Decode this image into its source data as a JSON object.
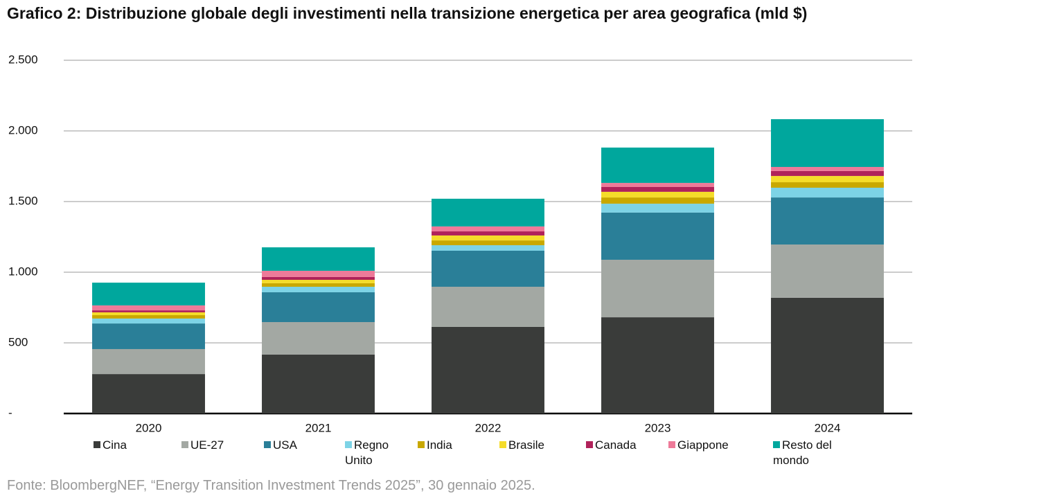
{
  "chart_data": {
    "type": "stacked-bar",
    "title": "Grafico 2: Distribuzione globale degli investimenti nella transizione energetica per area geografica (mld $)",
    "source": "Fonte: BloombergNEF, “Energy Transition Investment Trends 2025”, 30 gennaio 2025.",
    "categories": [
      "2020",
      "2021",
      "2022",
      "2023",
      "2024"
    ],
    "series": [
      {
        "name": "Cina",
        "color": "#3a3c3a",
        "values": [
          279,
          417,
          613,
          681,
          819
        ]
      },
      {
        "name": "UE-27",
        "color": "#a3a8a3",
        "values": [
          177,
          230,
          284,
          407,
          377
        ]
      },
      {
        "name": "USA",
        "color": "#2a7f98",
        "values": [
          181,
          211,
          255,
          334,
          333
        ]
      },
      {
        "name": "Regno Unito",
        "color": "#7dd3e6",
        "values": [
          35,
          39,
          39,
          63,
          69
        ]
      },
      {
        "name": "India",
        "color": "#c9a800",
        "values": [
          24,
          25,
          34,
          44,
          39
        ]
      },
      {
        "name": "Brasile",
        "color": "#f5dc2a",
        "values": [
          20,
          24,
          35,
          40,
          44
        ]
      },
      {
        "name": "Canada",
        "color": "#b0225a",
        "values": [
          14,
          20,
          29,
          34,
          35
        ]
      },
      {
        "name": "Giappone",
        "color": "#ee7a99",
        "values": [
          35,
          44,
          35,
          29,
          29
        ]
      },
      {
        "name": "Resto del mondo",
        "color": "#00a79d",
        "values": [
          161,
          166,
          196,
          250,
          338
        ]
      }
    ],
    "ylim": [
      0,
      2500
    ],
    "yticks": [
      {
        "value": 0,
        "label": "-"
      },
      500,
      {
        "value": 1000,
        "label": "1.000"
      },
      {
        "value": 1500,
        "label": "1.500"
      },
      {
        "value": 2000,
        "label": "2.000"
      },
      {
        "value": 2500,
        "label": "2.500"
      }
    ],
    "grid": true
  }
}
